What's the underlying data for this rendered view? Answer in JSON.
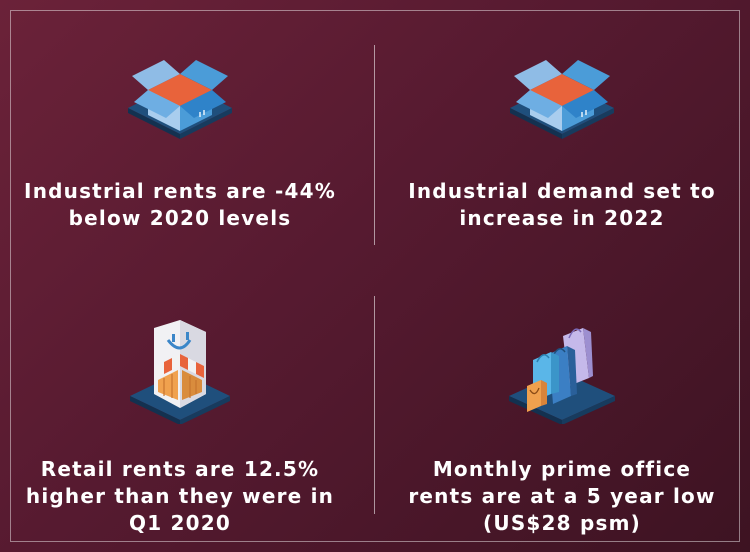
{
  "colors": {
    "background": "#5a1b32",
    "text": "#ffffff",
    "platform": "#1f4f7c",
    "box_light": "#9fc8ea",
    "box_mid": "#4c9bd8",
    "box_inner": "#f07a52"
  },
  "stats": [
    {
      "icon": "open-box-icon",
      "text": "Industrial rents are -44%\nbelow 2020 levels"
    },
    {
      "icon": "open-box-icon",
      "text": "Industrial demand set to\nincrease in 2022"
    },
    {
      "icon": "shopfront-icon",
      "text": "Retail rents are 12.5%\nhigher than they were in\nQ1 2020"
    },
    {
      "icon": "shopping-bags-icon",
      "text": "Monthly prime office\nrents are at a 5 year low\n(US$28 psm)"
    }
  ]
}
